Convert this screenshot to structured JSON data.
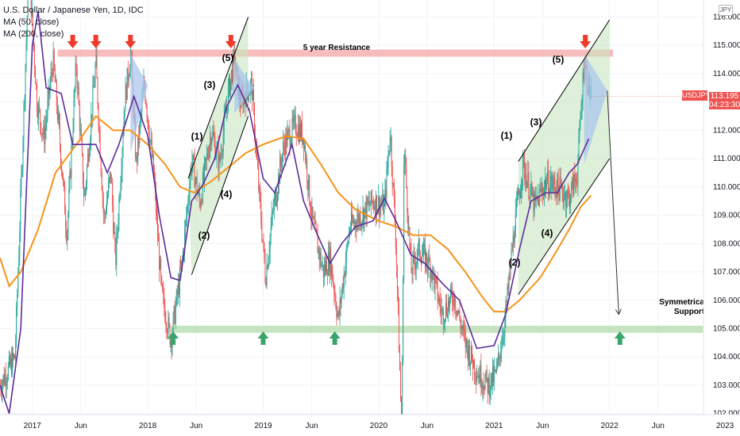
{
  "legend": {
    "title": "U.S. Dollar / Japanese Yen, 1D, IDC",
    "ma50": "MA (50, close)",
    "ma200": "MA (200, close)"
  },
  "symbol": "USDJPY",
  "currency_badge": "JPY",
  "current_price": "113.195",
  "countdown": "04:23:30",
  "colors": {
    "up": "#26a69a",
    "down": "#ef5350",
    "ma50": "#5b2c9e",
    "ma200": "#f7931a",
    "resistance_zone": "#f4a5a5",
    "support_zone": "#b7dfb0",
    "channel_fill": "#c8e6c0",
    "projection": "#a9c7ee",
    "arrow_down": "#ef3b2c",
    "arrow_up": "#3aa56a"
  },
  "chart_data": {
    "type": "candlestick",
    "y_axis": {
      "min": 101.6,
      "max": 116.6,
      "ticks": [
        "102.000",
        "103.000",
        "104.000",
        "105.000",
        "106.000",
        "107.000",
        "108.000",
        "109.000",
        "110.000",
        "111.000",
        "112.000",
        "113.000",
        "114.000",
        "115.000",
        "116.000"
      ]
    },
    "x_axis": {
      "ticks": [
        "2017",
        "Jun",
        "2018",
        "Jun",
        "2019",
        "Jun",
        "2020",
        "Jun",
        "2021",
        "Jun",
        "2022",
        "Jun",
        "2023"
      ]
    },
    "resistance": {
      "label": "5 year Resistance",
      "low": 114.6,
      "high": 114.85
    },
    "support": {
      "label_line1": "Symmetrical",
      "label_line2": "Support",
      "low": 104.85,
      "high": 105.1
    },
    "waves": [
      "(1)",
      "(2)",
      "(3)",
      "(4)",
      "(5)",
      "(1)",
      "(2)",
      "(3)",
      "(4)",
      "(5)"
    ],
    "price_path": [
      [
        2016.72,
        103.0
      ],
      [
        2016.85,
        104.0
      ],
      [
        2016.92,
        112.0
      ],
      [
        2016.97,
        117.8
      ],
      [
        2017.04,
        113.0
      ],
      [
        2017.1,
        111.7
      ],
      [
        2017.18,
        114.5
      ],
      [
        2017.25,
        111.0
      ],
      [
        2017.3,
        108.3
      ],
      [
        2017.38,
        114.4
      ],
      [
        2017.45,
        109.5
      ],
      [
        2017.55,
        114.4
      ],
      [
        2017.62,
        108.8
      ],
      [
        2017.68,
        110.5
      ],
      [
        2017.72,
        107.3
      ],
      [
        2017.8,
        113.0
      ],
      [
        2017.85,
        114.7
      ],
      [
        2017.9,
        110.8
      ],
      [
        2017.97,
        113.7
      ],
      [
        2018.05,
        110.5
      ],
      [
        2018.12,
        106.2
      ],
      [
        2018.2,
        104.6
      ],
      [
        2018.3,
        107.4
      ],
      [
        2018.38,
        111.0
      ],
      [
        2018.45,
        109.4
      ],
      [
        2018.55,
        112.0
      ],
      [
        2018.62,
        110.8
      ],
      [
        2018.7,
        113.4
      ],
      [
        2018.75,
        114.5
      ],
      [
        2018.8,
        113.0
      ],
      [
        2018.9,
        113.6
      ],
      [
        2018.96,
        110.0
      ],
      [
        2019.02,
        106.8
      ],
      [
        2019.08,
        109.0
      ],
      [
        2019.18,
        111.5
      ],
      [
        2019.28,
        112.2
      ],
      [
        2019.35,
        111.8
      ],
      [
        2019.42,
        108.9
      ],
      [
        2019.52,
        107.0
      ],
      [
        2019.58,
        107.5
      ],
      [
        2019.65,
        105.3
      ],
      [
        2019.75,
        108.6
      ],
      [
        2019.85,
        109.0
      ],
      [
        2019.95,
        109.5
      ],
      [
        2020.05,
        109.3
      ],
      [
        2020.1,
        112.0
      ],
      [
        2020.15,
        108.0
      ],
      [
        2020.2,
        101.2
      ],
      [
        2020.22,
        111.5
      ],
      [
        2020.28,
        107.0
      ],
      [
        2020.35,
        107.8
      ],
      [
        2020.45,
        107.2
      ],
      [
        2020.55,
        105.5
      ],
      [
        2020.65,
        106.2
      ],
      [
        2020.75,
        104.5
      ],
      [
        2020.85,
        103.5
      ],
      [
        2020.95,
        103.0
      ],
      [
        2021.02,
        103.4
      ],
      [
        2021.1,
        105.5
      ],
      [
        2021.18,
        108.7
      ],
      [
        2021.25,
        110.8
      ],
      [
        2021.35,
        109.3
      ],
      [
        2021.45,
        110.2
      ],
      [
        2021.55,
        110.0
      ],
      [
        2021.65,
        109.6
      ],
      [
        2021.72,
        110.5
      ],
      [
        2021.78,
        114.5
      ],
      [
        2021.82,
        113.5
      ],
      [
        2021.84,
        113.2
      ]
    ],
    "ma50_path": [
      [
        2016.72,
        103.0
      ],
      [
        2016.8,
        102.0
      ],
      [
        2016.9,
        105.0
      ],
      [
        2016.95,
        110.0
      ],
      [
        2017.0,
        115.0
      ],
      [
        2017.05,
        116.2
      ],
      [
        2017.12,
        113.5
      ],
      [
        2017.25,
        113.3
      ],
      [
        2017.35,
        111.5
      ],
      [
        2017.45,
        111.5
      ],
      [
        2017.55,
        111.5
      ],
      [
        2017.65,
        110.5
      ],
      [
        2017.75,
        111.5
      ],
      [
        2017.88,
        113.2
      ],
      [
        2018.0,
        111.8
      ],
      [
        2018.1,
        109.0
      ],
      [
        2018.2,
        106.8
      ],
      [
        2018.28,
        106.7
      ],
      [
        2018.38,
        109.5
      ],
      [
        2018.48,
        110.1
      ],
      [
        2018.58,
        111.0
      ],
      [
        2018.68,
        112.8
      ],
      [
        2018.78,
        113.6
      ],
      [
        2018.88,
        112.7
      ],
      [
        2019.0,
        110.3
      ],
      [
        2019.1,
        109.8
      ],
      [
        2019.25,
        111.5
      ],
      [
        2019.35,
        109.5
      ],
      [
        2019.45,
        108.5
      ],
      [
        2019.58,
        107.3
      ],
      [
        2019.68,
        108.0
      ],
      [
        2019.8,
        108.6
      ],
      [
        2019.95,
        108.8
      ],
      [
        2020.05,
        109.6
      ],
      [
        2020.15,
        108.8
      ],
      [
        2020.28,
        107.6
      ],
      [
        2020.4,
        107.3
      ],
      [
        2020.55,
        106.6
      ],
      [
        2020.7,
        106.0
      ],
      [
        2020.85,
        104.3
      ],
      [
        2021.0,
        104.4
      ],
      [
        2021.1,
        105.5
      ],
      [
        2021.22,
        107.8
      ],
      [
        2021.32,
        109.5
      ],
      [
        2021.45,
        109.8
      ],
      [
        2021.55,
        109.8
      ],
      [
        2021.65,
        110.5
      ],
      [
        2021.72,
        110.8
      ],
      [
        2021.82,
        111.7
      ]
    ],
    "ma200_path": [
      [
        2016.72,
        107.5
      ],
      [
        2016.8,
        106.5
      ],
      [
        2016.9,
        107.0
      ],
      [
        2017.05,
        108.5
      ],
      [
        2017.2,
        110.5
      ],
      [
        2017.4,
        111.6
      ],
      [
        2017.55,
        112.5
      ],
      [
        2017.7,
        112.0
      ],
      [
        2017.85,
        112.0
      ],
      [
        2018.0,
        111.5
      ],
      [
        2018.15,
        110.8
      ],
      [
        2018.28,
        110.0
      ],
      [
        2018.4,
        109.8
      ],
      [
        2018.55,
        110.2
      ],
      [
        2018.7,
        110.7
      ],
      [
        2018.85,
        111.2
      ],
      [
        2019.0,
        111.5
      ],
      [
        2019.2,
        111.8
      ],
      [
        2019.35,
        111.7
      ],
      [
        2019.5,
        110.8
      ],
      [
        2019.65,
        109.8
      ],
      [
        2019.8,
        109.2
      ],
      [
        2020.0,
        108.8
      ],
      [
        2020.15,
        108.6
      ],
      [
        2020.3,
        108.3
      ],
      [
        2020.45,
        108.3
      ],
      [
        2020.6,
        107.8
      ],
      [
        2020.75,
        107.0
      ],
      [
        2020.9,
        106.1
      ],
      [
        2021.0,
        105.6
      ],
      [
        2021.1,
        105.6
      ],
      [
        2021.22,
        106.0
      ],
      [
        2021.4,
        106.8
      ],
      [
        2021.55,
        107.8
      ],
      [
        2021.65,
        108.5
      ],
      [
        2021.75,
        109.3
      ],
      [
        2021.84,
        109.7
      ]
    ],
    "arrows_down": [
      2017.35,
      2017.55,
      2017.85,
      2018.72,
      2021.79
    ],
    "arrows_up": [
      2018.22,
      2019.0,
      2019.62,
      2022.09
    ],
    "channel_2018": {
      "upper": [
        [
          2018.35,
          110.3
        ],
        [
          2018.87,
          116.0
        ]
      ],
      "lower": [
        [
          2018.38,
          106.9
        ],
        [
          2018.87,
          112.5
        ]
      ]
    },
    "channel_2021": {
      "upper": [
        [
          2021.21,
          110.9
        ],
        [
          2022.0,
          115.9
        ]
      ],
      "lower": [
        [
          2021.21,
          106.2
        ],
        [
          2022.0,
          111.0
        ]
      ]
    },
    "projection_line": [
      [
        2021.98,
        113.4
      ],
      [
        2022.08,
        105.5
      ]
    ]
  }
}
